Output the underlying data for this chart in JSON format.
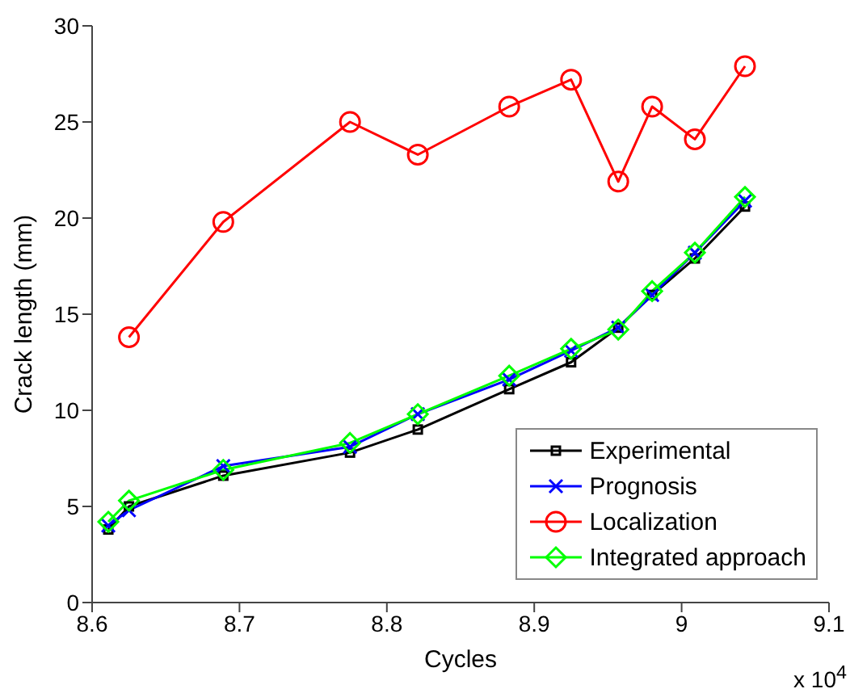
{
  "chart_data": {
    "type": "line",
    "xlabel": "Cycles",
    "ylabel": "Crack length (mm)",
    "annotations": [
      "x 10$^{4}$"
    ],
    "xlim": [
      8.6,
      9.1
    ],
    "xticks": [
      8.6,
      8.7,
      8.8,
      8.9,
      9,
      9.1
    ],
    "ylim": [
      0,
      30
    ],
    "yticks": [
      0,
      5,
      10,
      15,
      20,
      25,
      30
    ],
    "legend": "bottom right",
    "series": [
      {
        "name": "Experimental",
        "color": "#000000",
        "marker": "square",
        "x": [
          8.611,
          8.625,
          8.689,
          8.775,
          8.821,
          8.883,
          8.925,
          8.957,
          8.98,
          9.009,
          9.043
        ],
        "values": [
          3.8,
          5.0,
          6.6,
          7.8,
          9.0,
          11.1,
          12.5,
          14.3,
          16.0,
          17.9,
          20.6
        ]
      },
      {
        "name": "Prognosis",
        "color": "#0000ff",
        "marker": "cross",
        "x": [
          8.611,
          8.625,
          8.689,
          8.775,
          8.821,
          8.883,
          8.925,
          8.957,
          8.98,
          9.009,
          9.043
        ],
        "values": [
          4.0,
          4.8,
          7.1,
          8.1,
          9.8,
          11.6,
          13.1,
          14.3,
          16.0,
          18.2,
          20.9
        ]
      },
      {
        "name": "Localization",
        "color": "#ff0000",
        "marker": "circle",
        "x": [
          8.625,
          8.689,
          8.775,
          8.821,
          8.883,
          8.925,
          8.957,
          8.98,
          9.009,
          9.043
        ],
        "values": [
          13.8,
          19.8,
          25.0,
          23.3,
          25.8,
          27.2,
          21.9,
          25.8,
          24.1,
          27.9
        ]
      },
      {
        "name": "Integrated approach",
        "color": "#00ff00",
        "marker": "diamond",
        "x": [
          8.611,
          8.625,
          8.689,
          8.775,
          8.821,
          8.883,
          8.925,
          8.957,
          8.98,
          9.009,
          9.043
        ],
        "values": [
          4.2,
          5.3,
          6.9,
          8.3,
          9.8,
          11.8,
          13.2,
          14.2,
          16.2,
          18.2,
          21.1
        ]
      }
    ]
  }
}
